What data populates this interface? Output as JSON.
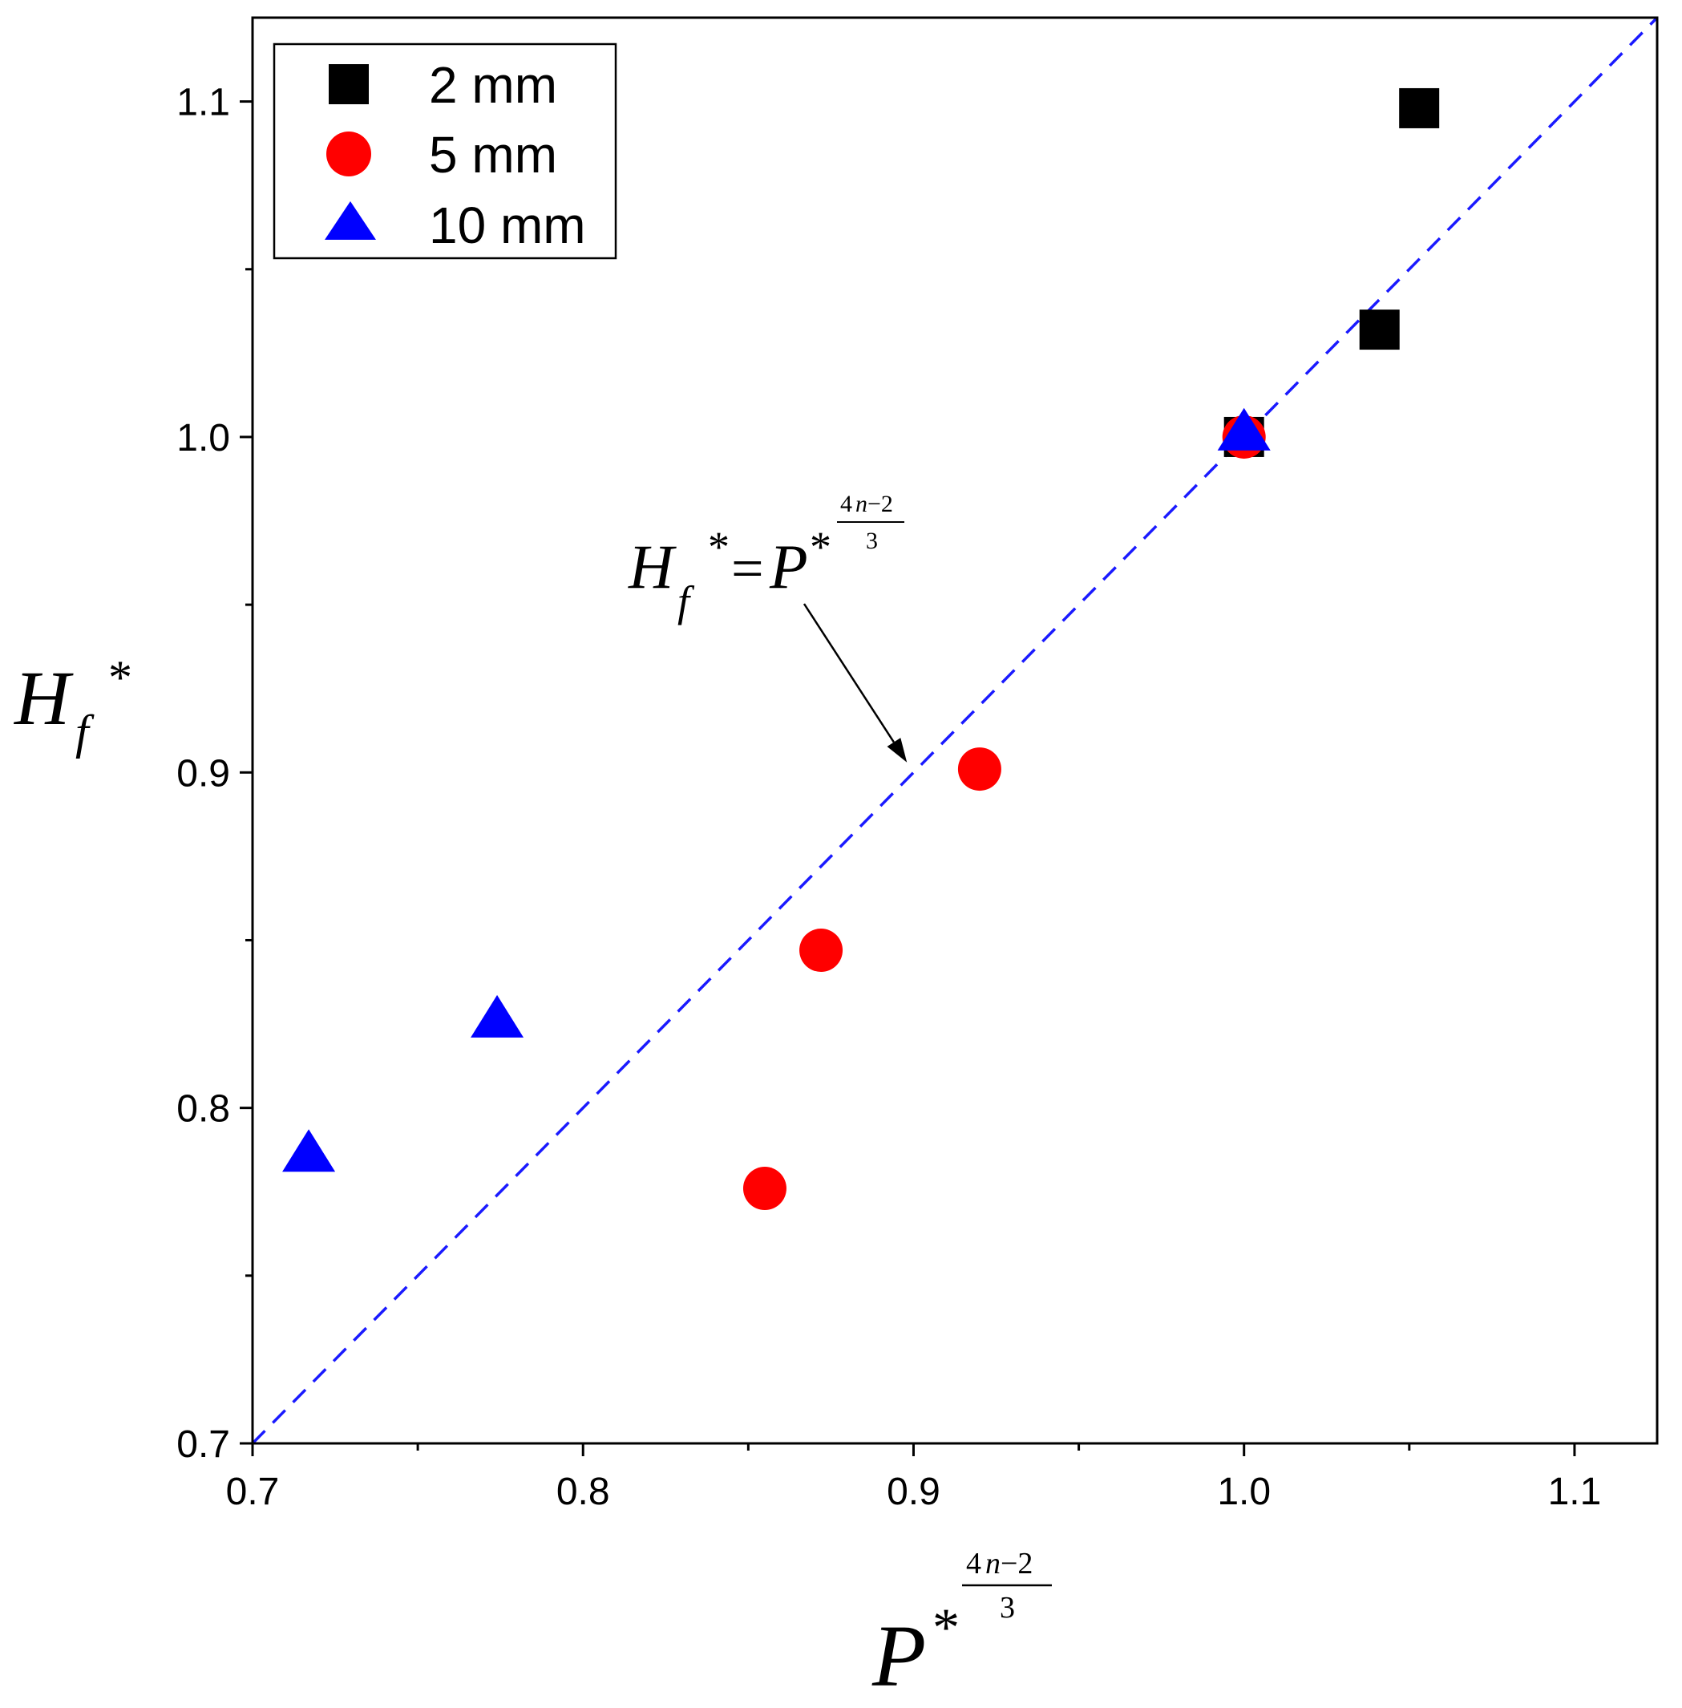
{
  "chart_data": {
    "type": "scatter",
    "title": "",
    "xlabel": {
      "base": "P",
      "sup": "*",
      "exp_num_coef": "4",
      "exp_num_var": "n",
      "exp_num_rest": "−2",
      "exp_den": "3"
    },
    "ylabel": {
      "base": "H",
      "sub": "f",
      "sup": "*"
    },
    "xlim": [
      0.7,
      1.125
    ],
    "ylim": [
      0.7,
      1.125
    ],
    "x_ticks": [
      0.7,
      0.8,
      0.9,
      1.0,
      1.1
    ],
    "x_tick_labels": [
      "0.7",
      "0.8",
      "0.9",
      "1.0",
      "1.1"
    ],
    "y_ticks": [
      0.7,
      0.8,
      0.9,
      1.0,
      1.1
    ],
    "y_tick_labels": [
      "0.7",
      "0.8",
      "0.9",
      "1.0",
      "1.1"
    ],
    "x_minor_ticks": [
      0.75,
      0.85,
      0.95,
      1.05
    ],
    "y_minor_ticks": [
      0.75,
      0.85,
      0.95,
      1.05
    ],
    "grid": false,
    "legend_position": "top-left",
    "series": [
      {
        "name": "2 mm",
        "marker": "square",
        "color": "#000000",
        "points": [
          [
            1.0,
            1.0
          ],
          [
            1.041,
            1.032
          ],
          [
            1.053,
            1.098
          ]
        ]
      },
      {
        "name": "5 mm",
        "marker": "circle",
        "color": "#ff0000",
        "points": [
          [
            1.0,
            1.0
          ],
          [
            0.92,
            0.901
          ],
          [
            0.872,
            0.847
          ],
          [
            0.855,
            0.776
          ]
        ]
      },
      {
        "name": "10 mm",
        "marker": "triangle",
        "color": "#0000ff",
        "points": [
          [
            1.0,
            1.001
          ],
          [
            0.774,
            0.826
          ],
          [
            0.717,
            0.786
          ]
        ]
      }
    ],
    "reference_line": {
      "kind": "y=x",
      "style": "dashed",
      "color": "#1a1aff"
    },
    "annotation": {
      "base_left": "H",
      "sub": "f",
      "sup_left": "*",
      "equals": "=",
      "base_right": "P",
      "sup_right": "*",
      "exp_num_coef": "4",
      "exp_num_var": "n",
      "exp_num_rest": "−2",
      "exp_den": "3",
      "arrow_target": [
        0.898,
        0.903
      ]
    }
  }
}
